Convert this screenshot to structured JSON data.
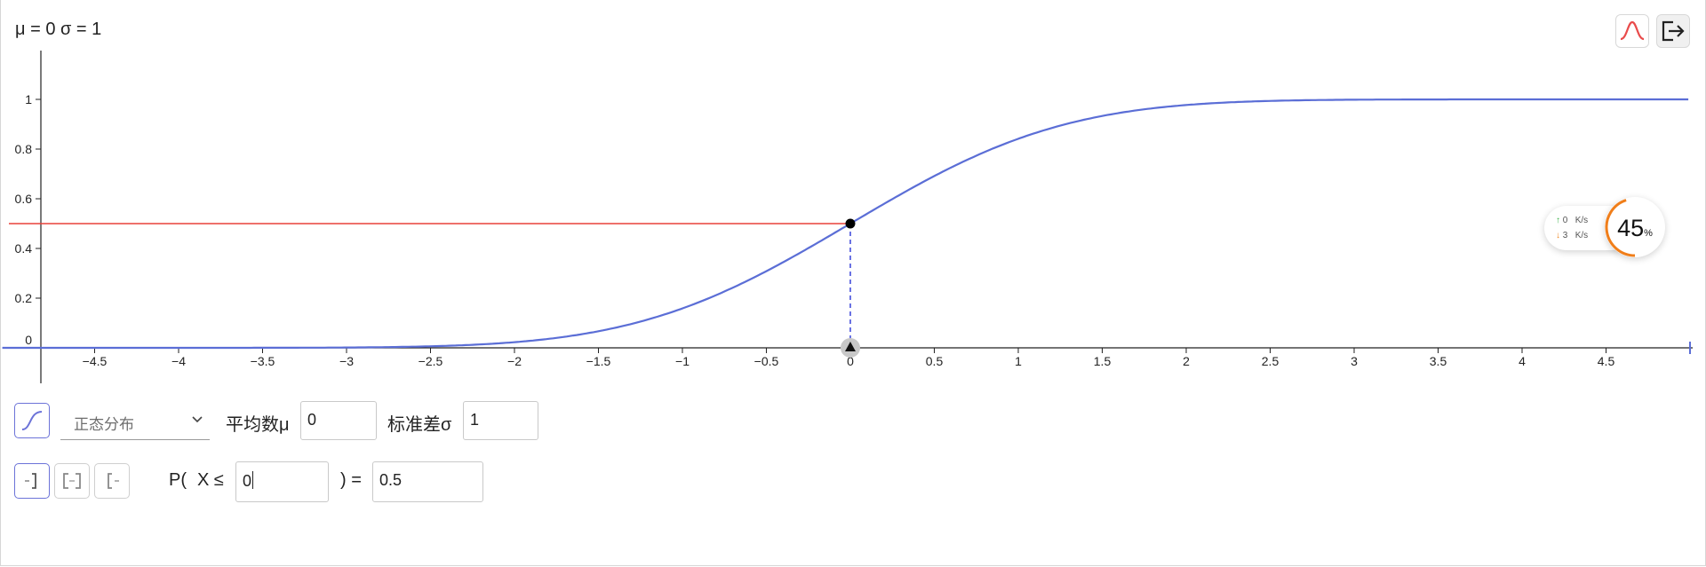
{
  "params_label": "μ = 0 σ = 1",
  "toolbar": {
    "distribution_icon": "bell-curve-icon",
    "exit_icon": "exit-icon"
  },
  "graph": {
    "x_ticks": [
      "−4.5",
      "−4",
      "−3.5",
      "−3",
      "−2.5",
      "−2",
      "−1.5",
      "−1",
      "−0.5",
      "0",
      "0.5",
      "1",
      "1.5",
      "2",
      "2.5",
      "3",
      "3.5",
      "4",
      "4.5"
    ],
    "x_tick_values": [
      -4.5,
      -4,
      -3.5,
      -3,
      -2.5,
      -2,
      -1.5,
      -1,
      -0.5,
      0,
      0.5,
      1,
      1.5,
      2,
      2.5,
      3,
      3.5,
      4,
      4.5
    ],
    "y_ticks": [
      "0",
      "0.2",
      "0.4",
      "0.6",
      "0.8",
      "1"
    ],
    "y_tick_values": [
      0,
      0.2,
      0.4,
      0.6,
      0.8,
      1
    ],
    "xlim": [
      -5,
      5
    ],
    "ylim": [
      0,
      1.2
    ],
    "curve_color": "#5b6ed6",
    "prob_line_color": "#e8413a",
    "point": {
      "x": 0,
      "y": 0.5
    }
  },
  "chart_data": {
    "type": "line",
    "title": "μ = 0 σ = 1",
    "series": [
      {
        "name": "",
        "function": "normal_cdf",
        "mean": 0,
        "sd": 1
      }
    ],
    "xlabel": "",
    "ylabel": "",
    "xlim": [
      -5,
      5
    ],
    "ylim": [
      0,
      1.2
    ],
    "grid": false,
    "highlight_point": {
      "x": 0,
      "y": 0.5
    }
  },
  "network": {
    "upload_value": "0",
    "upload_unit": "K/s",
    "download_value": "3",
    "download_unit": "K/s"
  },
  "cpu": {
    "value": "45",
    "unit": "%",
    "fraction": 0.45,
    "accent": "#f07e1a"
  },
  "controls": {
    "cdf_icon": "cumulative-curve-icon",
    "distribution": "正态分布",
    "mean_label": "平均数μ",
    "mean_value": "0",
    "sd_label": "标准差σ",
    "sd_value": "1"
  },
  "probability": {
    "left_icon": "left-sided-icon",
    "interval_icon": "interval-icon",
    "right_icon": "right-sided-icon",
    "p_label": "P(",
    "x_label": "X ≤",
    "x_value": "0",
    "eq_label": ") =",
    "result": "0.5"
  }
}
